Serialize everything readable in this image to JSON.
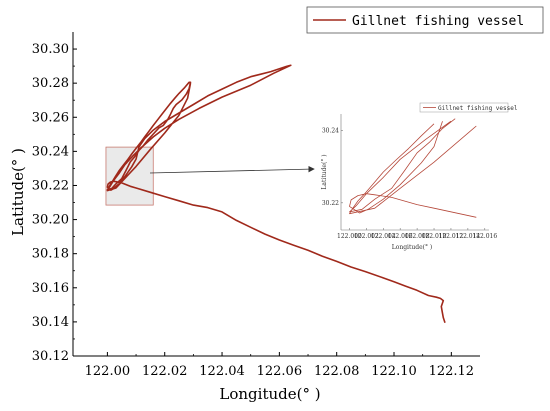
{
  "chart_data": {
    "type": "line",
    "xlabel": "Longitude(° )",
    "ylabel": "Latitude(° )",
    "xlim": [
      121.988,
      122.13
    ],
    "ylim": [
      30.12,
      30.31
    ],
    "x_ticks": [
      "122.00",
      "122.02",
      "122.04",
      "122.06",
      "122.08",
      "122.10",
      "122.12"
    ],
    "x_tick_values": [
      122.0,
      122.02,
      122.04,
      122.06,
      122.08,
      122.1,
      122.12
    ],
    "y_ticks": [
      "30.12",
      "30.14",
      "30.16",
      "30.18",
      "30.20",
      "30.22",
      "30.24",
      "30.26",
      "30.28",
      "30.30"
    ],
    "y_tick_values": [
      30.12,
      30.14,
      30.16,
      30.18,
      30.2,
      30.22,
      30.24,
      30.26,
      30.28,
      30.3
    ],
    "series": [
      {
        "name": "Gillnet fishing vessel",
        "color": "#a0291b",
        "x": [
          122.1178,
          122.1172,
          122.1168,
          122.1165,
          122.1172,
          122.1162,
          122.1148,
          122.112,
          122.108,
          122.104,
          122.1,
          122.096,
          122.09,
          122.085,
          122.08,
          122.075,
          122.07,
          122.065,
          122.06,
          122.055,
          122.05,
          122.045,
          122.04,
          122.035,
          122.03,
          122.025,
          122.02,
          122.015,
          122.01,
          122.008,
          122.005,
          122.003,
          122.002,
          122.001,
          122.0002,
          122.0,
          122.0012,
          122.0022,
          122.004,
          122.006,
          122.0085,
          122.01,
          122.011,
          122.013,
          122.016,
          122.02,
          122.025,
          122.03,
          122.035,
          122.04,
          122.045,
          122.05,
          122.054,
          122.057,
          122.06,
          122.0625,
          122.064,
          122.058,
          122.05,
          122.04,
          122.032,
          122.025,
          122.02,
          122.016,
          122.012,
          122.009,
          122.006,
          122.004,
          122.002,
          122.0008,
          122.0,
          122.0015,
          122.003,
          122.005,
          122.0065,
          122.008,
          122.0095,
          122.011,
          122.0125,
          122.014,
          122.016,
          122.018,
          122.0195,
          122.021,
          122.022,
          122.023,
          122.024,
          122.026,
          122.0275,
          122.0285,
          122.029,
          122.0285,
          122.027,
          122.025,
          122.0235,
          122.022,
          122.0205,
          122.019,
          122.0175,
          122.016,
          122.0145,
          122.013,
          122.0115,
          122.01,
          122.0085,
          122.007,
          122.0055,
          122.004,
          122.0028,
          122.0018,
          122.001,
          122.0004,
          122.0,
          122.003,
          122.006,
          122.01,
          122.015,
          122.02,
          122.025,
          122.028,
          122.029
        ],
        "y": [
          30.1395,
          30.1425,
          30.146,
          30.149,
          30.1525,
          30.1538,
          30.1545,
          30.1555,
          30.1585,
          30.161,
          30.1635,
          30.166,
          30.1695,
          30.1722,
          30.1755,
          30.1785,
          30.182,
          30.185,
          30.188,
          30.1915,
          30.1955,
          30.1995,
          30.2045,
          30.207,
          30.2085,
          30.211,
          30.2135,
          30.216,
          30.2185,
          30.2195,
          30.2215,
          30.2222,
          30.2225,
          30.222,
          30.2208,
          30.219,
          30.2172,
          30.2182,
          30.221,
          30.225,
          30.231,
          30.2355,
          30.2425,
          30.2475,
          30.2525,
          30.2575,
          30.2625,
          30.2675,
          30.2725,
          30.2765,
          30.2805,
          30.2838,
          30.2855,
          30.2868,
          30.2885,
          30.2898,
          30.2905,
          30.2858,
          30.2788,
          30.2718,
          30.2652,
          30.2588,
          30.2535,
          30.2485,
          30.2425,
          30.2375,
          30.232,
          30.227,
          30.2225,
          30.2192,
          30.2175,
          30.2182,
          30.221,
          30.224,
          30.2288,
          30.2338,
          30.2368,
          30.2405,
          30.2432,
          30.2465,
          30.2502,
          30.2538,
          30.2552,
          30.2585,
          30.2618,
          30.2652,
          30.2675,
          30.2702,
          30.2735,
          30.2768,
          30.2805,
          30.2805,
          30.2775,
          30.274,
          30.2712,
          30.2682,
          30.265,
          30.2618,
          30.2585,
          30.2552,
          30.2518,
          30.2485,
          30.245,
          30.2418,
          30.2385,
          30.235,
          30.2318,
          30.2285,
          30.2252,
          30.2225,
          30.2205,
          30.2185,
          30.217,
          30.2185,
          30.224,
          30.2312,
          30.2412,
          30.2508,
          30.2612,
          30.2712,
          30.28
        ]
      }
    ],
    "highlight_box": {
      "x0": 121.9995,
      "x1": 122.016,
      "y0": 30.2085,
      "y1": 30.2425
    },
    "legend": {
      "position": "top-right",
      "entries": [
        "Gillnet fishing vessel"
      ]
    },
    "grid": false,
    "inset": {
      "type": "line",
      "xlabel": "Longitude(° )",
      "ylabel": "Latitude(° )",
      "xlim": [
        121.999,
        122.0165
      ],
      "ylim": [
        30.2125,
        30.2445
      ],
      "x_ticks": [
        "122.000",
        "122.002",
        "122.004",
        "122.006",
        "122.008",
        "122.010",
        "122.012",
        "122.014",
        "122.016"
      ],
      "x_tick_values": [
        122.0,
        122.002,
        122.004,
        122.006,
        122.008,
        122.01,
        122.012,
        122.014,
        122.016
      ],
      "y_ticks": [
        "30.22",
        "30.24"
      ],
      "y_tick_values": [
        30.22,
        30.24
      ],
      "legend": [
        "Gillnet fishing vessel"
      ],
      "color": "#b5483a"
    }
  }
}
